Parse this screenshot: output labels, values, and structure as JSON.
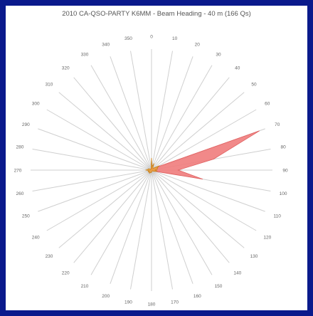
{
  "chart_data": {
    "type": "polar-area",
    "title": "2010 CA-QSO-PARTY K6MM - Beam Heading - 40 m (166 Qs)",
    "angle_labels": [
      "0",
      "10",
      "20",
      "30",
      "40",
      "50",
      "60",
      "70",
      "80",
      "90",
      "100",
      "110",
      "120",
      "130",
      "140",
      "150",
      "160",
      "170",
      "180",
      "190",
      "200",
      "210",
      "220",
      "230",
      "240",
      "250",
      "260",
      "270",
      "280",
      "290",
      "300",
      "310",
      "320",
      "330",
      "340",
      "350"
    ],
    "series": [
      {
        "color": "#f07c7c",
        "stroke": "#e06060",
        "directions": [
          0,
          10,
          20,
          30,
          40,
          50,
          60,
          70,
          80,
          90,
          100,
          110,
          120,
          130,
          140,
          150,
          160,
          170,
          180,
          190,
          200,
          210,
          220,
          230,
          240,
          250,
          260,
          270,
          280,
          290,
          300,
          310,
          320,
          330,
          340,
          350
        ],
        "values": [
          3,
          1,
          2,
          1,
          1,
          2,
          5,
          95,
          52,
          22,
          43,
          3,
          1,
          1,
          1,
          1,
          1,
          1,
          1,
          1,
          1,
          1,
          1,
          1,
          1,
          1,
          1,
          1,
          1,
          1,
          1,
          1,
          1,
          1,
          1,
          1
        ]
      },
      {
        "color": "#e8a03a",
        "stroke": "#c8801a",
        "directions": [
          0,
          10,
          20,
          30,
          40,
          50,
          60,
          70,
          80,
          90,
          100,
          110,
          120,
          130,
          140,
          150,
          160,
          170,
          180,
          190,
          200,
          210,
          220,
          230,
          240,
          250,
          260,
          270,
          280,
          290,
          300,
          310,
          320,
          330,
          340,
          350
        ],
        "values": [
          10,
          3,
          6,
          2,
          2,
          3,
          7,
          5,
          5,
          3,
          5,
          3,
          2,
          1,
          1,
          1,
          1,
          1,
          2,
          2,
          2,
          3,
          3,
          2,
          3,
          3,
          2,
          5,
          3,
          3,
          2,
          1,
          1,
          1,
          1,
          2
        ]
      }
    ],
    "r_max": 100,
    "grid": true
  }
}
